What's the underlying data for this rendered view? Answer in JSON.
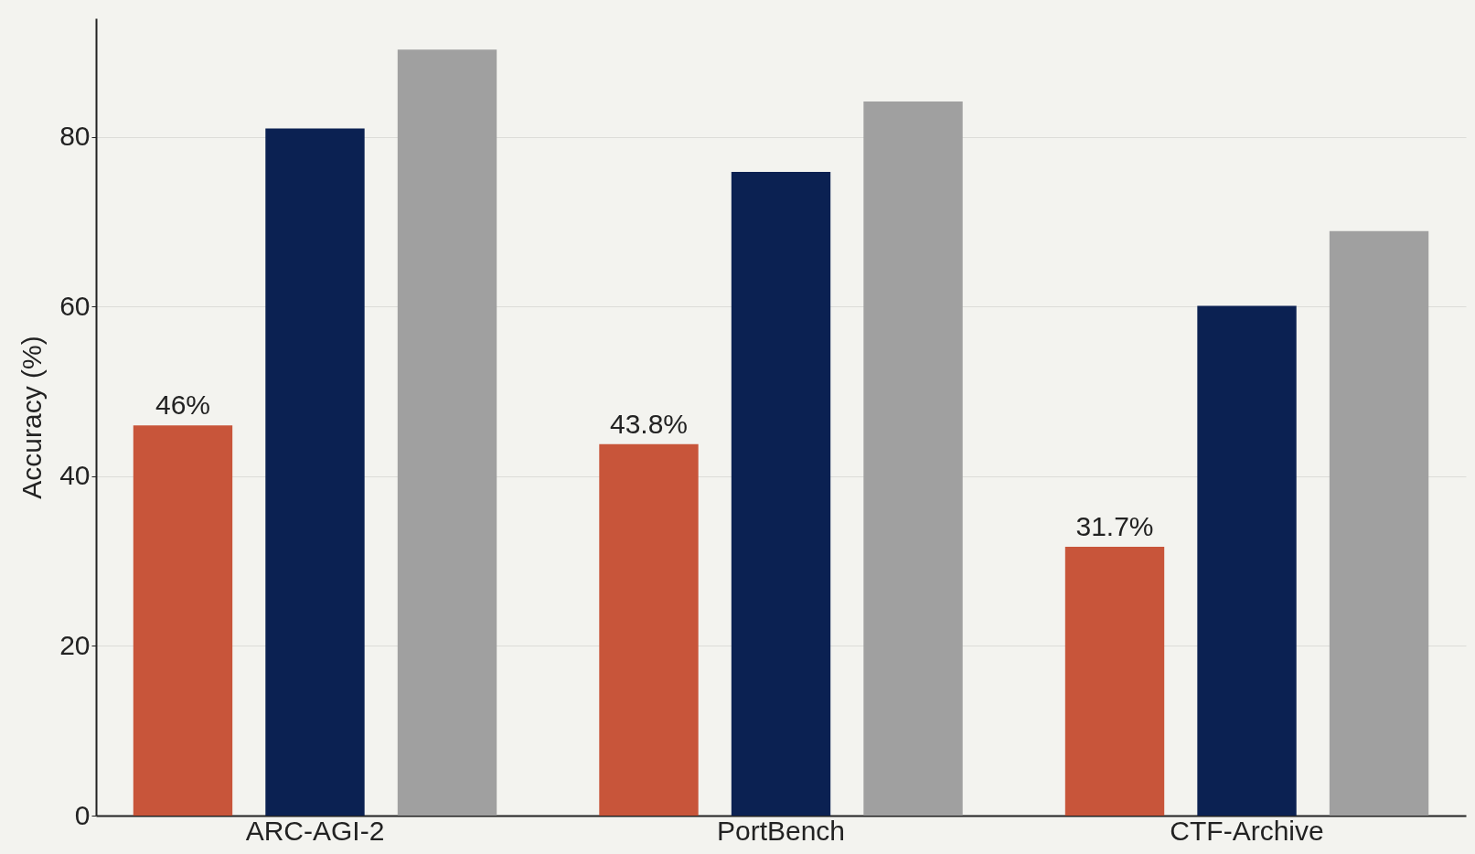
{
  "chart_data": {
    "type": "bar",
    "ylabel": "Accuracy (%)",
    "categories": [
      "ARC-AGI-2",
      "PortBench",
      "CTF-Archive"
    ],
    "series": [
      {
        "color": "#c8553a",
        "values": [
          46,
          43.8,
          31.7
        ],
        "value_labels": [
          "46%",
          "43.8%",
          "31.7%"
        ]
      },
      {
        "color": "#0b2152",
        "values": [
          81,
          75.9,
          60.1
        ]
      },
      {
        "color": "#a0a0a0",
        "values": [
          90.3,
          84.2,
          68.9
        ]
      }
    ],
    "ylim": [
      0,
      94
    ],
    "yticks": [
      0,
      20,
      40,
      60,
      80
    ],
    "grid": "y"
  }
}
